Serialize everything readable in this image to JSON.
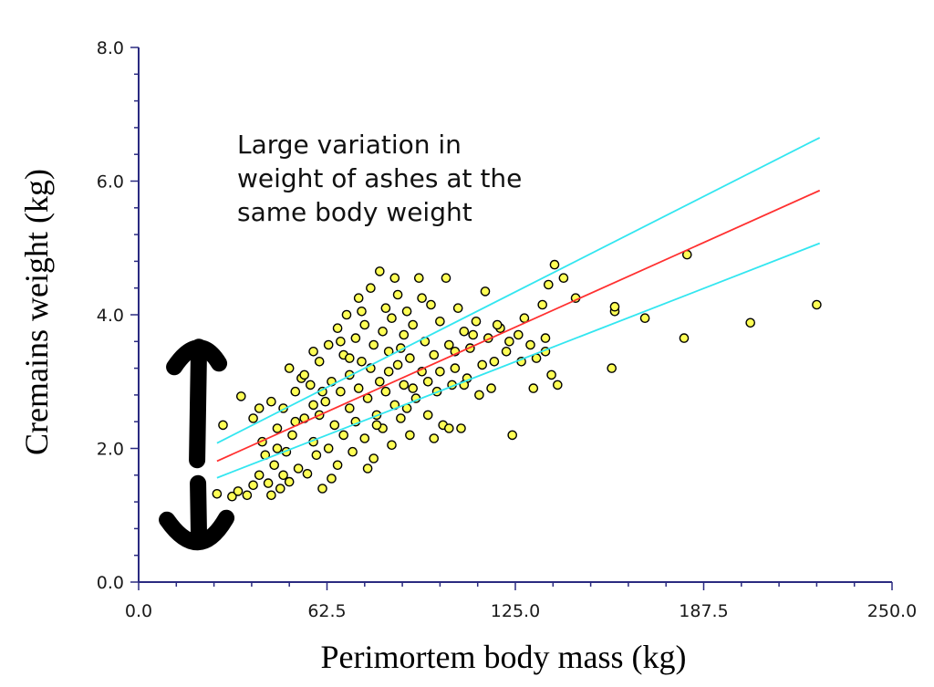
{
  "chart_data": {
    "type": "scatter",
    "xlabel": "Perimortem body mass (kg)",
    "ylabel": "Cremains weight (kg)",
    "xlim": [
      0,
      250
    ],
    "ylim": [
      0,
      8
    ],
    "x_ticks": [
      "0.0",
      "62.5",
      "125.0",
      "187.5",
      "250.0"
    ],
    "y_ticks": [
      "0.0",
      "2.0",
      "4.0",
      "6.0",
      "8.0"
    ],
    "grid": false,
    "annotation": [
      "Large variation in",
      "weight of ashes at the",
      "same body weight"
    ],
    "fit_line": {
      "x": [
        26,
        226
      ],
      "y": [
        1.81,
        5.86
      ],
      "color": "#ff3030"
    },
    "confidence_upper": {
      "x": [
        26,
        226
      ],
      "y": [
        2.08,
        6.65
      ],
      "color": "#33e6f0"
    },
    "confidence_lower": {
      "x": [
        26,
        226
      ],
      "y": [
        1.56,
        5.07
      ],
      "color": "#33e6f0"
    },
    "arrow": {
      "x": 20,
      "y_top": 3.6,
      "y_bottom": 0.55,
      "color": "#000000"
    },
    "marker": {
      "fill": "#ffff55",
      "stroke": "#000000"
    },
    "points": [
      [
        28,
        2.35
      ],
      [
        26,
        1.32
      ],
      [
        31,
        1.28
      ],
      [
        33,
        1.36
      ],
      [
        34,
        2.78
      ],
      [
        36,
        1.3
      ],
      [
        38,
        1.45
      ],
      [
        38,
        2.45
      ],
      [
        40,
        1.6
      ],
      [
        41,
        2.1
      ],
      [
        42,
        1.9
      ],
      [
        43,
        1.48
      ],
      [
        44,
        2.7
      ],
      [
        45,
        1.75
      ],
      [
        46,
        2.3
      ],
      [
        47,
        1.4
      ],
      [
        48,
        2.6
      ],
      [
        49,
        1.95
      ],
      [
        50,
        3.2
      ],
      [
        50,
        1.5
      ],
      [
        51,
        2.2
      ],
      [
        52,
        2.85
      ],
      [
        53,
        1.7
      ],
      [
        54,
        3.05
      ],
      [
        55,
        2.45
      ],
      [
        56,
        1.62
      ],
      [
        57,
        2.95
      ],
      [
        58,
        3.45
      ],
      [
        58,
        2.1
      ],
      [
        59,
        1.9
      ],
      [
        60,
        3.3
      ],
      [
        60,
        2.5
      ],
      [
        61,
        1.4
      ],
      [
        62,
        2.7
      ],
      [
        63,
        3.55
      ],
      [
        63,
        2.0
      ],
      [
        64,
        3.0
      ],
      [
        65,
        2.35
      ],
      [
        66,
        3.8
      ],
      [
        66,
        1.75
      ],
      [
        67,
        2.85
      ],
      [
        68,
        3.4
      ],
      [
        68,
        2.2
      ],
      [
        69,
        4.0
      ],
      [
        70,
        2.6
      ],
      [
        70,
        3.1
      ],
      [
        71,
        1.95
      ],
      [
        72,
        3.65
      ],
      [
        72,
        2.4
      ],
      [
        73,
        4.25
      ],
      [
        73,
        2.9
      ],
      [
        74,
        3.3
      ],
      [
        75,
        2.15
      ],
      [
        75,
        3.85
      ],
      [
        76,
        2.75
      ],
      [
        77,
        4.4
      ],
      [
        77,
        3.2
      ],
      [
        78,
        1.85
      ],
      [
        78,
        3.55
      ],
      [
        79,
        2.5
      ],
      [
        80,
        4.65
      ],
      [
        80,
        3.0
      ],
      [
        81,
        3.75
      ],
      [
        81,
        2.3
      ],
      [
        82,
        4.1
      ],
      [
        82,
        2.85
      ],
      [
        83,
        3.45
      ],
      [
        84,
        2.05
      ],
      [
        84,
        3.95
      ],
      [
        85,
        2.65
      ],
      [
        86,
        4.3
      ],
      [
        86,
        3.25
      ],
      [
        87,
        2.45
      ],
      [
        88,
        3.7
      ],
      [
        88,
        2.95
      ],
      [
        89,
        4.05
      ],
      [
        90,
        3.35
      ],
      [
        90,
        2.2
      ],
      [
        91,
        3.85
      ],
      [
        92,
        2.75
      ],
      [
        93,
        4.55
      ],
      [
        94,
        3.15
      ],
      [
        95,
        3.6
      ],
      [
        96,
        2.5
      ],
      [
        97,
        4.15
      ],
      [
        98,
        3.4
      ],
      [
        99,
        2.85
      ],
      [
        100,
        3.9
      ],
      [
        101,
        2.35
      ],
      [
        102,
        4.55
      ],
      [
        103,
        3.55
      ],
      [
        104,
        2.95
      ],
      [
        105,
        3.2
      ],
      [
        106,
        4.1
      ],
      [
        107,
        2.3
      ],
      [
        108,
        3.75
      ],
      [
        109,
        3.05
      ],
      [
        110,
        3.5
      ],
      [
        112,
        3.9
      ],
      [
        113,
        2.8
      ],
      [
        115,
        4.35
      ],
      [
        116,
        3.65
      ],
      [
        117,
        2.9
      ],
      [
        118,
        3.3
      ],
      [
        120,
        3.8
      ],
      [
        122,
        3.45
      ],
      [
        124,
        2.2
      ],
      [
        126,
        3.7
      ],
      [
        128,
        3.95
      ],
      [
        130,
        3.55
      ],
      [
        131,
        2.9
      ],
      [
        132,
        3.35
      ],
      [
        134,
        4.15
      ],
      [
        135,
        3.65
      ],
      [
        135,
        3.45
      ],
      [
        136,
        4.45
      ],
      [
        137,
        3.1
      ],
      [
        138,
        4.75
      ],
      [
        139,
        2.95
      ],
      [
        141,
        4.55
      ],
      [
        145,
        4.25
      ],
      [
        157,
        3.2
      ],
      [
        158,
        4.05
      ],
      [
        158,
        4.12
      ],
      [
        168,
        3.95
      ],
      [
        181,
        3.65
      ],
      [
        182,
        4.9
      ],
      [
        203,
        3.88
      ],
      [
        225,
        4.15
      ],
      [
        40,
        2.6
      ],
      [
        44,
        1.3
      ],
      [
        46,
        2.0
      ],
      [
        48,
        1.6
      ],
      [
        52,
        2.4
      ],
      [
        55,
        3.1
      ],
      [
        58,
        2.65
      ],
      [
        61,
        2.85
      ],
      [
        64,
        1.55
      ],
      [
        67,
        3.6
      ],
      [
        70,
        3.35
      ],
      [
        74,
        4.05
      ],
      [
        76,
        1.7
      ],
      [
        79,
        2.35
      ],
      [
        83,
        3.15
      ],
      [
        85,
        4.55
      ],
      [
        87,
        3.5
      ],
      [
        89,
        2.6
      ],
      [
        91,
        2.9
      ],
      [
        94,
        4.25
      ],
      [
        96,
        3.0
      ],
      [
        98,
        2.15
      ],
      [
        100,
        3.15
      ],
      [
        103,
        2.3
      ],
      [
        105,
        3.45
      ],
      [
        108,
        2.95
      ],
      [
        111,
        3.7
      ],
      [
        114,
        3.25
      ],
      [
        119,
        3.85
      ],
      [
        123,
        3.6
      ],
      [
        127,
        3.3
      ]
    ]
  }
}
